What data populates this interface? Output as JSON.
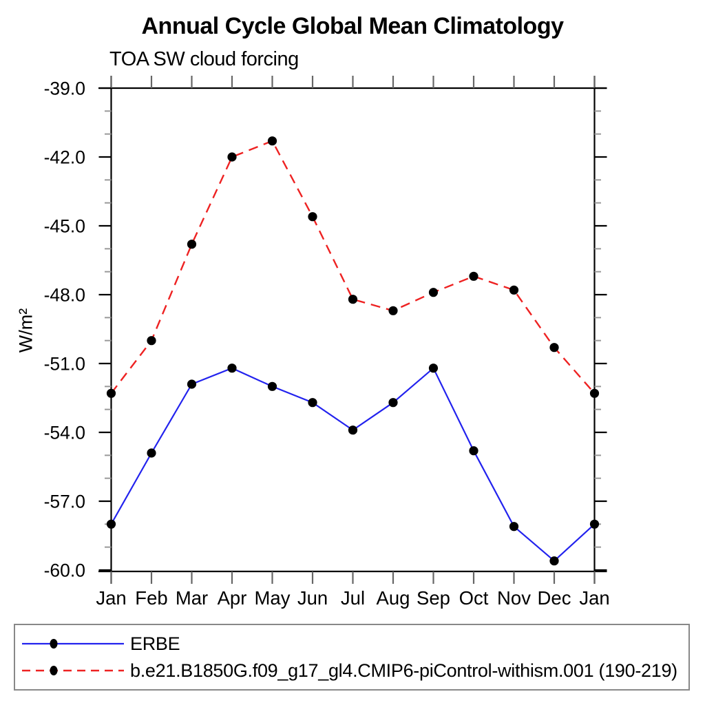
{
  "header": {
    "title": "Annual Cycle Global Mean Climatology",
    "subtitle": "TOA SW cloud forcing"
  },
  "chart_data": {
    "type": "line",
    "title": "Annual Cycle Global Mean Climatology",
    "subtitle": "TOA SW cloud forcing",
    "ylabel": "W/m²",
    "xlabel": "",
    "categories": [
      "Jan",
      "Feb",
      "Mar",
      "Apr",
      "May",
      "Jun",
      "Jul",
      "Aug",
      "Sep",
      "Oct",
      "Nov",
      "Dec",
      "Jan"
    ],
    "ylim": [
      -60.0,
      -39.0
    ],
    "y_axis_inverted_top_value": -39.0,
    "ytick_major_values": [
      -39,
      -42,
      -45,
      -48,
      -51,
      -54,
      -57,
      -60
    ],
    "ytick_labels": [
      "-39.0",
      "-42.0",
      "-45.0",
      "-48.0",
      "-51.0",
      "-54.0",
      "-57.0",
      "-60.0"
    ],
    "ytick_minor_step": 1.0,
    "grid": "off",
    "legend_position": "bottom-box",
    "series": [
      {
        "name": "ERBE",
        "color": "#2222ee",
        "line_style": "solid",
        "marker": "filled-black-circle",
        "values": [
          -58.0,
          -54.9,
          -51.9,
          -51.2,
          -52.0,
          -52.7,
          -53.9,
          -52.7,
          -51.2,
          -54.8,
          -58.1,
          -59.6,
          -58.0
        ]
      },
      {
        "name": "b.e21.B1850G.f09_g17_gl4.CMIP6-piControl-withism.001 (190-219)",
        "color": "#ee2222",
        "line_style": "dashed",
        "marker": "filled-black-circle",
        "values": [
          -52.3,
          -50.0,
          -45.8,
          -42.0,
          -41.3,
          -44.6,
          -48.2,
          -48.7,
          -47.9,
          -47.2,
          -47.8,
          -50.3,
          -52.3
        ]
      }
    ],
    "style_colors": {
      "axis": "#000000",
      "month_ticks": "#666666",
      "minor_ticks": "#999999",
      "marker": "#000000",
      "legend_border": "#888888",
      "text": "#000000"
    }
  }
}
